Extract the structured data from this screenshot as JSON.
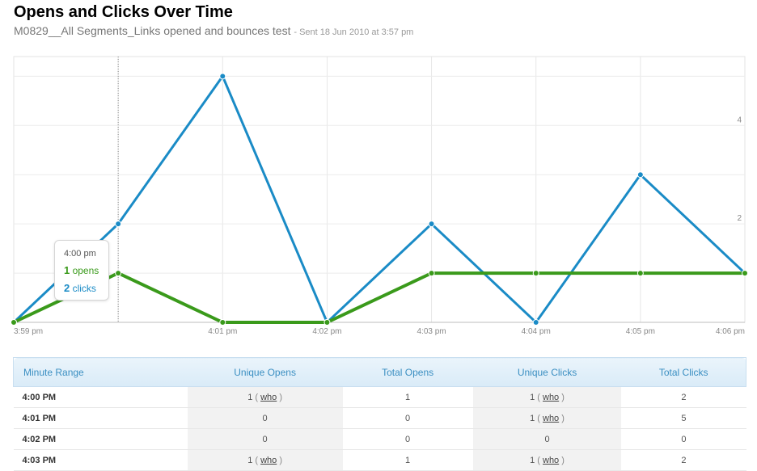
{
  "header": {
    "title": "Opens and Clicks Over Time",
    "subtitle": "M0829__All Segments_Links opened and bounces test",
    "sent_info": "- Sent 18 Jun 2010 at 3:57 pm"
  },
  "tooltip": {
    "time": "4:00 pm",
    "opens_value": "1",
    "opens_label": "opens",
    "clicks_value": "2",
    "clicks_label": "clicks"
  },
  "chart_data": {
    "type": "line",
    "x": [
      "3:59 pm",
      "4:00 pm",
      "4:01 pm",
      "4:02 pm",
      "4:03 pm",
      "4:04 pm",
      "4:05 pm",
      "4:06 pm"
    ],
    "x_tick_labels": [
      "3:59 pm",
      "4:01 pm",
      "4:02 pm",
      "4:03 pm",
      "4:04 pm",
      "4:05 pm",
      "4:06 pm"
    ],
    "y_tick_labels": [
      "2",
      "4"
    ],
    "ylim": [
      0,
      5.4
    ],
    "grid": true,
    "highlight_x": "4:00 pm",
    "series": [
      {
        "name": "opens",
        "color": "#3a9a1b",
        "values": [
          0,
          1,
          0,
          0,
          1,
          1,
          1,
          1
        ]
      },
      {
        "name": "clicks",
        "color": "#1a8bc6",
        "values": [
          0,
          2,
          5,
          0,
          2,
          0,
          3,
          1
        ]
      }
    ]
  },
  "table": {
    "columns": [
      "Minute Range",
      "Unique Opens",
      "Total Opens",
      "Unique Clicks",
      "Total Clicks"
    ],
    "who_label": "who",
    "rows": [
      {
        "minute": "4:00 PM",
        "unique_opens": "1",
        "opens_who": true,
        "total_opens": "1",
        "unique_clicks": "1",
        "clicks_who": true,
        "total_clicks": "2"
      },
      {
        "minute": "4:01 PM",
        "unique_opens": "0",
        "opens_who": false,
        "total_opens": "0",
        "unique_clicks": "1",
        "clicks_who": true,
        "total_clicks": "5"
      },
      {
        "minute": "4:02 PM",
        "unique_opens": "0",
        "opens_who": false,
        "total_opens": "0",
        "unique_clicks": "0",
        "clicks_who": false,
        "total_clicks": "0"
      },
      {
        "minute": "4:03 PM",
        "unique_opens": "1",
        "opens_who": true,
        "total_opens": "1",
        "unique_clicks": "1",
        "clicks_who": true,
        "total_clicks": "2"
      }
    ]
  }
}
